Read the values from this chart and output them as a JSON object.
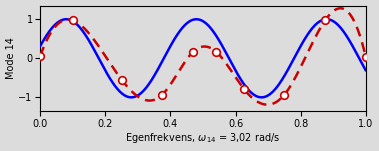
{
  "title": "",
  "ylabel": "Mode 14",
  "xlim": [
    0,
    1
  ],
  "ylim": [
    -1.35,
    1.35
  ],
  "xticks": [
    0,
    0.2,
    0.4,
    0.6,
    0.8,
    1
  ],
  "yticks": [
    -1,
    0,
    1
  ],
  "bg_color": "#dcdcdc",
  "blue_color": "#0000ff",
  "red_color": "#cc0000",
  "blue_linewidth": 1.8,
  "red_linewidth": 1.8,
  "marker_size": 5.5,
  "scatter_x": [
    0.0,
    0.1,
    0.25,
    0.375,
    0.47,
    0.54,
    0.625,
    0.75,
    0.875,
    1.0
  ],
  "scatter_y": [
    0.05,
    0.97,
    -0.55,
    -0.93,
    0.17,
    0.17,
    -0.78,
    -0.93,
    0.97,
    0.03
  ]
}
